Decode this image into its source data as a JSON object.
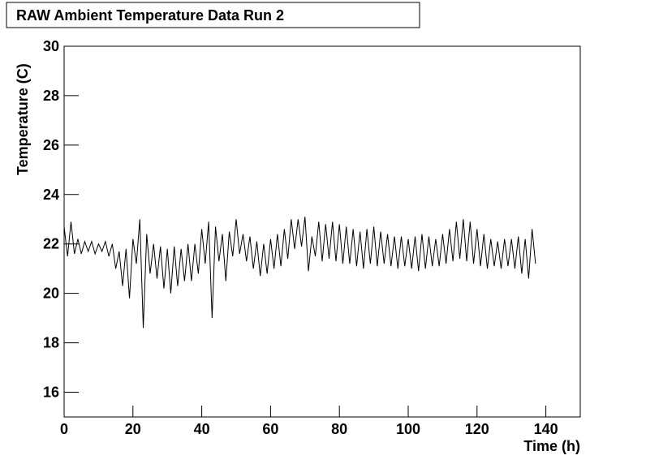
{
  "chart_data": {
    "type": "line",
    "title": "RAW Ambient Temperature Data Run 2",
    "x_label": "Time (h)",
    "y_label": "Temperature (C)",
    "xlim": [
      0,
      150
    ],
    "xticks": [
      0,
      20,
      40,
      60,
      80,
      100,
      120,
      140
    ],
    "ylim": [
      15,
      30
    ],
    "yticks": [
      16,
      18,
      20,
      22,
      24,
      26,
      28,
      30
    ],
    "grid": false,
    "x": [
      0,
      1,
      2,
      3,
      4,
      5,
      6,
      7,
      8,
      9,
      10,
      11,
      12,
      13,
      14,
      15,
      16,
      17,
      18,
      19,
      20,
      21,
      22,
      23,
      24,
      25,
      26,
      27,
      28,
      29,
      30,
      31,
      32,
      33,
      34,
      35,
      36,
      37,
      38,
      39,
      40,
      41,
      42,
      43,
      44,
      45,
      46,
      47,
      48,
      49,
      50,
      51,
      52,
      53,
      54,
      55,
      56,
      57,
      58,
      59,
      60,
      61,
      62,
      63,
      64,
      65,
      66,
      67,
      68,
      69,
      70,
      71,
      72,
      73,
      74,
      75,
      76,
      77,
      78,
      79,
      80,
      81,
      82,
      83,
      84,
      85,
      86,
      87,
      88,
      89,
      90,
      91,
      92,
      93,
      94,
      95,
      96,
      97,
      98,
      99,
      100,
      101,
      102,
      103,
      104,
      105,
      106,
      107,
      108,
      109,
      110,
      111,
      112,
      113,
      114,
      115,
      116,
      117,
      118,
      119,
      120,
      121,
      122,
      123,
      124,
      125,
      126,
      127,
      128,
      129,
      130,
      131,
      132,
      133,
      134,
      135,
      136,
      137
    ],
    "series": [
      {
        "color": "#000000",
        "values": [
          22.7,
          21.5,
          22.9,
          21.6,
          22.2,
          21.6,
          22.1,
          21.7,
          22.1,
          21.6,
          22.0,
          21.7,
          22.1,
          21.5,
          22.0,
          21.0,
          21.7,
          20.3,
          21.8,
          19.8,
          22.2,
          21.2,
          23.0,
          18.6,
          22.4,
          20.8,
          22.0,
          20.6,
          21.9,
          20.2,
          21.8,
          20.0,
          21.9,
          20.3,
          21.8,
          20.5,
          22.0,
          20.5,
          22.0,
          20.8,
          22.6,
          21.2,
          22.9,
          19.0,
          22.7,
          21.3,
          22.4,
          20.5,
          22.5,
          21.5,
          23.0,
          21.6,
          22.4,
          21.3,
          22.3,
          21.0,
          22.1,
          20.7,
          22.0,
          20.8,
          22.2,
          21.0,
          22.4,
          21.1,
          22.6,
          21.4,
          23.0,
          21.8,
          23.0,
          21.9,
          23.1,
          20.9,
          22.3,
          21.5,
          22.9,
          21.3,
          22.8,
          21.4,
          22.9,
          21.3,
          22.8,
          21.2,
          22.7,
          21.2,
          22.6,
          21.1,
          22.5,
          21.0,
          22.6,
          21.2,
          22.7,
          21.1,
          22.5,
          21.2,
          22.4,
          21.1,
          22.3,
          21.0,
          22.3,
          21.1,
          22.2,
          21.0,
          22.3,
          20.9,
          22.4,
          21.0,
          22.3,
          21.1,
          22.2,
          21.1,
          22.4,
          21.2,
          22.6,
          21.3,
          22.9,
          21.4,
          23.0,
          21.3,
          22.9,
          21.2,
          22.6,
          21.1,
          22.4,
          21.0,
          22.2,
          21.1,
          22.1,
          21.0,
          22.2,
          21.1,
          22.2,
          21.0,
          22.3,
          20.8,
          22.2,
          20.6,
          22.6,
          21.2
        ]
      }
    ]
  }
}
